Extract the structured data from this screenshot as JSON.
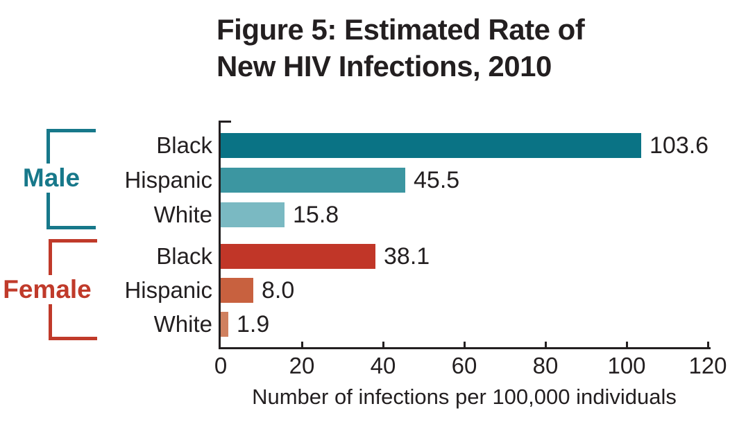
{
  "title": {
    "line1": "Figure 5: Estimated Rate of",
    "line2": "New HIV Infections, 2010"
  },
  "chart_data": {
    "type": "bar",
    "orientation": "horizontal",
    "title": "Figure 5: Estimated Rate of New HIV Infections, 2010",
    "xlabel": "Number of infections per 100,000 individuals",
    "xlim": [
      0,
      120
    ],
    "xticks": [
      0,
      20,
      40,
      60,
      80,
      100,
      120
    ],
    "grid": false,
    "legend_position": "left-brackets",
    "text_color": "#231f20",
    "groups": [
      {
        "name": "Male",
        "color": "#17788a",
        "bars": [
          {
            "category": "Black",
            "value": 103.6,
            "label": "103.6",
            "color": "#0a7385"
          },
          {
            "category": "Hispanic",
            "value": 45.5,
            "label": "45.5",
            "color": "#3c96a1"
          },
          {
            "category": "White",
            "value": 15.8,
            "label": "15.8",
            "color": "#7ab9c2"
          }
        ]
      },
      {
        "name": "Female",
        "color": "#c03a2a",
        "bars": [
          {
            "category": "Black",
            "value": 38.1,
            "label": "38.1",
            "color": "#c13628"
          },
          {
            "category": "Hispanic",
            "value": 8.0,
            "label": "8.0",
            "color": "#c8613f"
          },
          {
            "category": "White",
            "value": 1.9,
            "label": "1.9",
            "color": "#d0805f"
          }
        ]
      }
    ]
  }
}
